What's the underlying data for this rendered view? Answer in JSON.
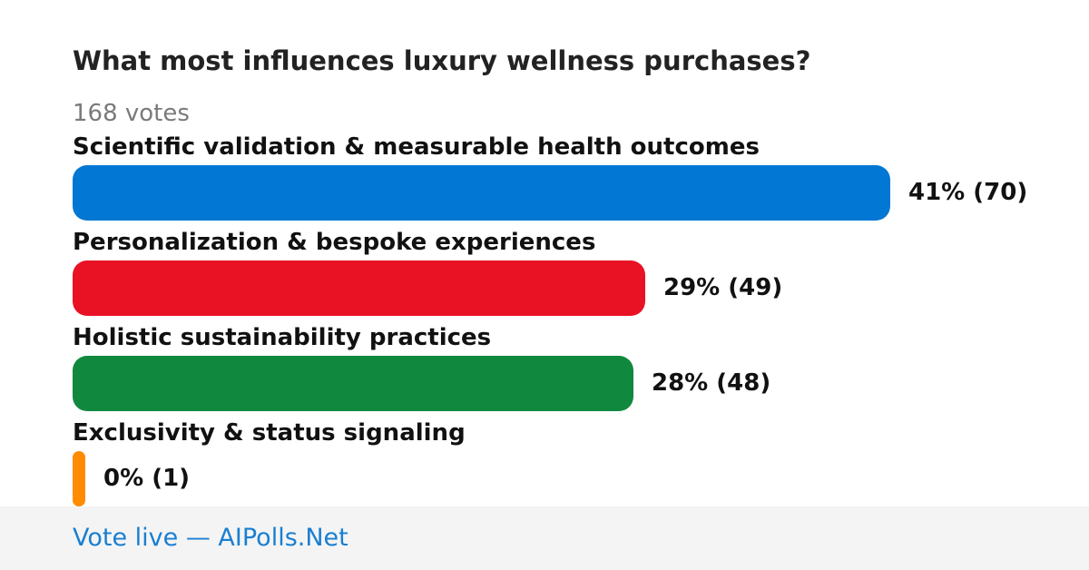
{
  "poll": {
    "title": "What most influences luxury wellness purchases?",
    "votes_label": "168 votes"
  },
  "chart_data": {
    "type": "bar",
    "orientation": "horizontal",
    "title": "What most influences luxury wellness purchases?",
    "total_votes": 168,
    "categories": [
      "Scientific validation & measurable health outcomes",
      "Personalization & bespoke experiences",
      "Holistic sustainability practices",
      "Exclusivity & status signaling"
    ],
    "values": [
      70,
      49,
      48,
      1
    ],
    "percents": [
      41,
      29,
      28,
      0
    ],
    "result_labels": [
      "41% (70)",
      "29% (49)",
      "28% (48)",
      "0% (1)"
    ],
    "colors": [
      "#0277d4",
      "#e81224",
      "#10893e",
      "#ff8c00"
    ]
  },
  "footer": {
    "link_text": "Vote live — AIPolls.Net"
  }
}
